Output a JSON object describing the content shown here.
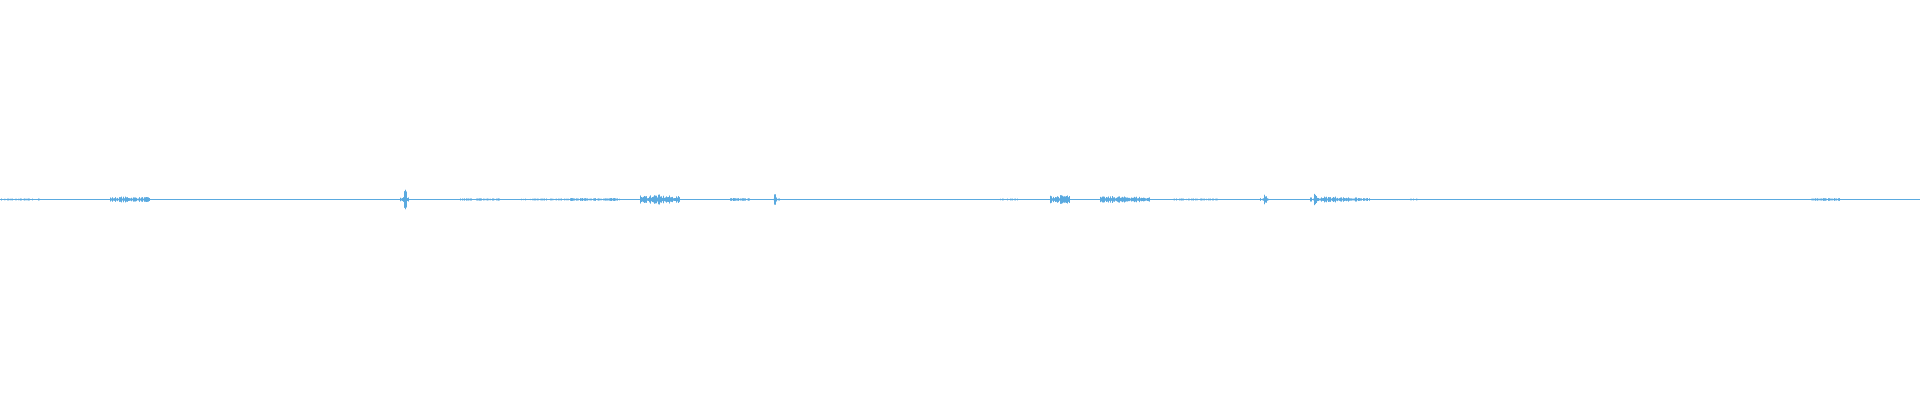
{
  "chart_data": {
    "type": "waveform",
    "title": "",
    "xlabel": "",
    "ylabel": "",
    "ylim": [
      -1,
      1
    ],
    "grid": false,
    "color": "#5aaae0",
    "amplitude_scale": 0.05,
    "samples": [
      0.1,
      0.1,
      0.1,
      0.1,
      0.05,
      0.05,
      0.05,
      0.05,
      0.05,
      0.05,
      0.05,
      0.25,
      0.3,
      0.25,
      0.25,
      0.05,
      0.05,
      0.05,
      0.05,
      0.05,
      0.05,
      0.05,
      0.05,
      0.05,
      0.05,
      0.05,
      0.05,
      0.05,
      0.05,
      0.05,
      0.05,
      0.05,
      0.05,
      0.05,
      0.05,
      0.05,
      0.05,
      0.05,
      0.05,
      0.05,
      1.0,
      0.05,
      0.05,
      0.05,
      0.05,
      0.05,
      0.12,
      0.12,
      0.12,
      0.12,
      0.05,
      0.05,
      0.1,
      0.1,
      0.1,
      0.1,
      0.1,
      0.15,
      0.15,
      0.15,
      0.15,
      0.15,
      0.05,
      0.05,
      0.4,
      0.5,
      0.4,
      0.35,
      0.05,
      0.05,
      0.05,
      0.05,
      0.05,
      0.15,
      0.15,
      0.05,
      0.05,
      0.6,
      0.05,
      0.05,
      0.05,
      0.05,
      0.05,
      0.05,
      0.05,
      0.05,
      0.05,
      0.05,
      0.05,
      0.05,
      0.05,
      0.05,
      0.05,
      0.05,
      0.05,
      0.05,
      0.05,
      0.05,
      0.05,
      0.05,
      0.1,
      0.1,
      0.05,
      0.05,
      0.05,
      0.4,
      0.45,
      0.05,
      0.05,
      0.05,
      0.3,
      0.35,
      0.3,
      0.3,
      0.25,
      0.05,
      0.05,
      0.1,
      0.1,
      0.1,
      0.1,
      0.1,
      0.05,
      0.05,
      0.05,
      0.05,
      0.6,
      0.05,
      0.05,
      0.05,
      0.05,
      0.8,
      0.3,
      0.3,
      0.25,
      0.2,
      0.15,
      0.05,
      0.05,
      0.05,
      0.05,
      0.1,
      0.05,
      0.05,
      0.05,
      0.05,
      0.05,
      0.05,
      0.05,
      0.05,
      0.05,
      0.05,
      0.05,
      0.05,
      0.05,
      0.05,
      0.05,
      0.05,
      0.05,
      0.05,
      0.05,
      0.05,
      0.05,
      0.05,
      0.05,
      0.05,
      0.05,
      0.05,
      0.05,
      0.05,
      0.05,
      0.05,
      0.05,
      0.05,
      0.05,
      0.05,
      0.05,
      0.05,
      0.05,
      0.05,
      0.05,
      0.15,
      0.15,
      0.15,
      0.05,
      0.05,
      0.05,
      0.05,
      0.05,
      0.05,
      0.05,
      0.05
    ]
  }
}
